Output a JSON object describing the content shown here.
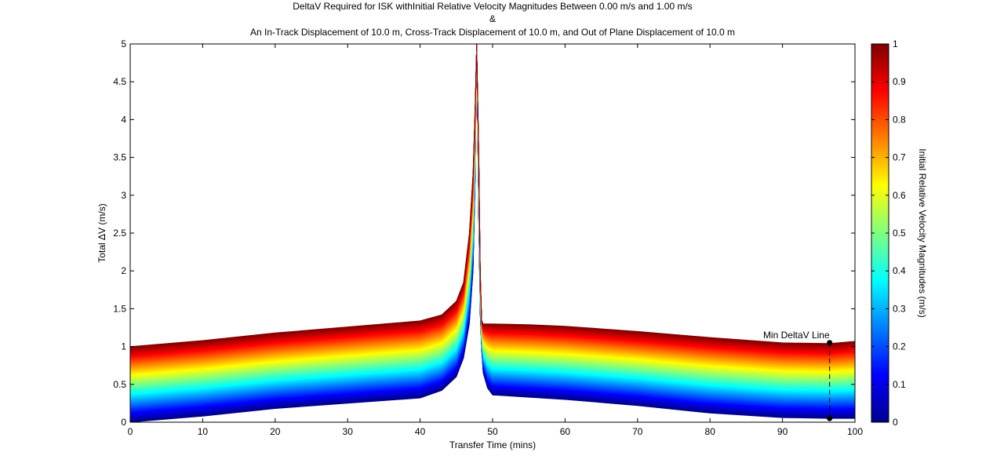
{
  "chart_data": {
    "type": "area",
    "title_lines": [
      "DeltaV Required for ISK withInitial Relative Velocity Magnitudes Between 0.00 m/s and 1.00 m/s",
      "&",
      "An In-Track Displacement of 10.0 m, Cross-Track Displacement of 10.0 m, and Out of Plane Displacement of 10.0 m"
    ],
    "xlabel": "Transfer Time (mins)",
    "ylabel_prefix": "Total ",
    "ylabel_symbol": "∆",
    "ylabel_suffix": "V (m/s)",
    "xlim": [
      0,
      100
    ],
    "ylim": [
      0,
      5
    ],
    "x_ticks": [
      "0",
      "10",
      "20",
      "30",
      "40",
      "50",
      "60",
      "70",
      "80",
      "90",
      "100"
    ],
    "y_ticks": [
      "0",
      "0.5",
      "1",
      "1.5",
      "2",
      "2.5",
      "3",
      "3.5",
      "4",
      "4.5",
      "5"
    ],
    "colorbar": {
      "label": "Initial Relative Velocity Magnitudes (m/s)",
      "range": [
        0,
        1
      ],
      "colormap": "jet",
      "ticks": [
        "0",
        "0.1",
        "0.2",
        "0.3",
        "0.4",
        "0.5",
        "0.6",
        "0.7",
        "0.8",
        "0.9",
        "1"
      ]
    },
    "series": [
      {
        "band": "upper",
        "x": [
          0,
          10,
          20,
          30,
          40,
          43,
          45,
          46,
          46.8,
          47.3,
          47.6,
          47.8
        ],
        "y": [
          1.0,
          1.08,
          1.18,
          1.26,
          1.34,
          1.42,
          1.6,
          1.85,
          2.5,
          3.3,
          4.2,
          5.0
        ]
      },
      {
        "band": "lower",
        "x": [
          0,
          10,
          20,
          30,
          40,
          43,
          45,
          46,
          46.8,
          47.3,
          47.6,
          47.8
        ],
        "y": [
          0.0,
          0.08,
          0.18,
          0.25,
          0.32,
          0.42,
          0.6,
          0.85,
          1.3,
          2.0,
          3.2,
          5.0
        ]
      },
      {
        "band": "upper",
        "x": [
          47.8,
          48.1,
          48.3,
          48.5,
          48.7,
          50,
          55,
          60,
          70,
          80,
          90,
          96.5,
          100
        ],
        "y": [
          5.0,
          3.6,
          2.0,
          1.35,
          1.3,
          1.3,
          1.29,
          1.27,
          1.2,
          1.12,
          1.05,
          1.04,
          1.07
        ]
      },
      {
        "band": "lower",
        "x": [
          47.8,
          48.1,
          48.3,
          48.5,
          48.7,
          49.3,
          50,
          55,
          60,
          70,
          80,
          90,
          96.5,
          100
        ],
        "y": [
          5.0,
          2.6,
          1.4,
          0.95,
          0.65,
          0.45,
          0.36,
          0.33,
          0.3,
          0.22,
          0.12,
          0.06,
          0.05,
          0.05
        ]
      }
    ],
    "annotations": [
      {
        "label": "Min DeltaV Line",
        "x": 96.5,
        "y_top": 1.05,
        "y_bottom": 0.05,
        "style": "dashed",
        "marker": "circle"
      }
    ]
  }
}
